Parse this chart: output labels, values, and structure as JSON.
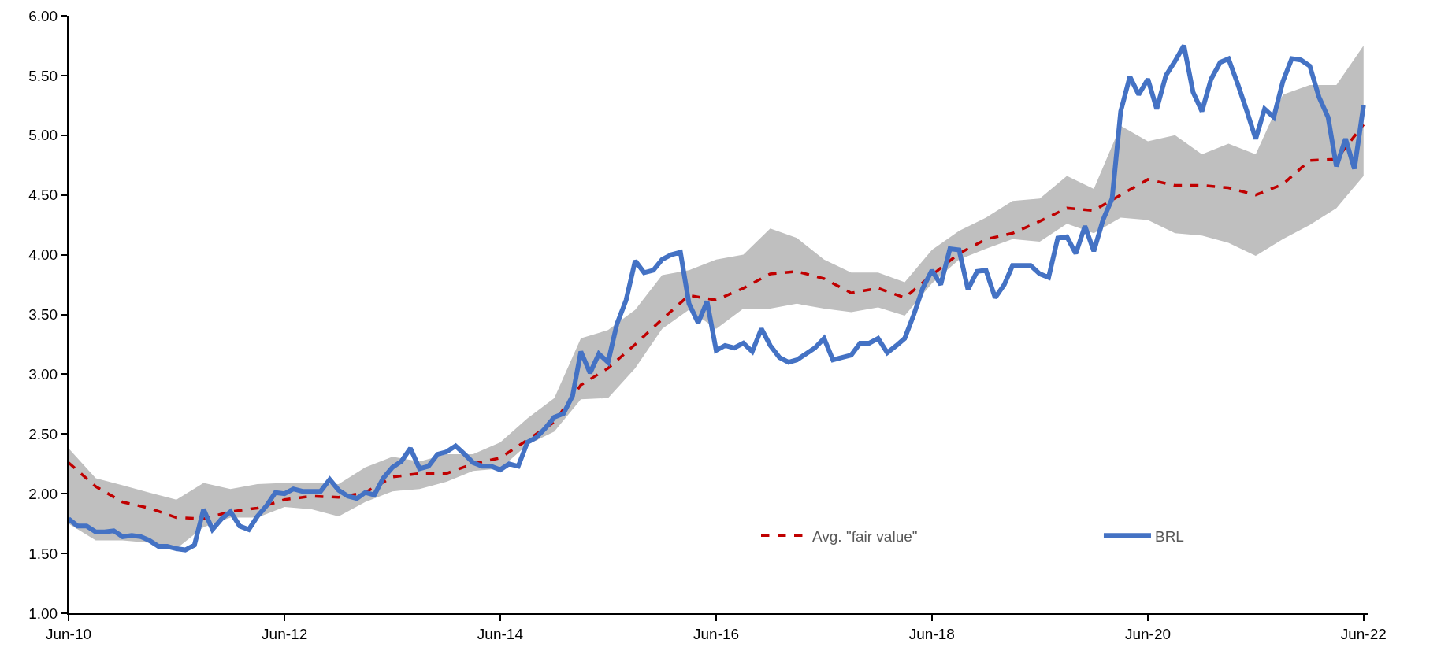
{
  "chart_data": {
    "type": "line",
    "xlim": [
      "2010-06-01",
      "2022-06-15"
    ],
    "xticks": [
      {
        "value": "2010-06-01",
        "label": "Jun-10"
      },
      {
        "value": "2012-06-01",
        "label": "Jun-12"
      },
      {
        "value": "2014-06-01",
        "label": "Jun-14"
      },
      {
        "value": "2016-06-01",
        "label": "Jun-16"
      },
      {
        "value": "2018-06-01",
        "label": "Jun-18"
      },
      {
        "value": "2020-06-01",
        "label": "Jun-20"
      },
      {
        "value": "2022-06-01",
        "label": "Jun-22"
      }
    ],
    "ylim": [
      1,
      6
    ],
    "yticks": [
      {
        "value": 1,
        "label": "1.00"
      },
      {
        "value": 1.5,
        "label": "1.50"
      },
      {
        "value": 2,
        "label": "2.00"
      },
      {
        "value": 2.5,
        "label": "2.50"
      },
      {
        "value": 3,
        "label": "3.00"
      },
      {
        "value": 3.5,
        "label": "3.50"
      },
      {
        "value": 4,
        "label": "4.00"
      },
      {
        "value": 4.5,
        "label": "4.50"
      },
      {
        "value": 5,
        "label": "5.00"
      },
      {
        "value": 5.5,
        "label": "5.50"
      },
      {
        "value": 6,
        "label": "6.00"
      }
    ],
    "grid": false,
    "legend": "bottom right",
    "marker": "none",
    "series": [
      {
        "name": "Avg. \"fair value\"",
        "color": "#c00000",
        "line_style": "dashed",
        "x": [
          "2010-06",
          "2010-09",
          "2010-12",
          "2011-03",
          "2011-06",
          "2011-09",
          "2011-12",
          "2012-03",
          "2012-06",
          "2012-09",
          "2012-12",
          "2013-03",
          "2013-06",
          "2013-09",
          "2013-12",
          "2014-03",
          "2014-06",
          "2014-09",
          "2014-12",
          "2015-03",
          "2015-06",
          "2015-09",
          "2015-12",
          "2016-03",
          "2016-06",
          "2016-09",
          "2016-12",
          "2017-03",
          "2017-06",
          "2017-09",
          "2017-12",
          "2018-03",
          "2018-06",
          "2018-09",
          "2018-12",
          "2019-03",
          "2019-06",
          "2019-09",
          "2019-12",
          "2020-03",
          "2020-06",
          "2020-09",
          "2020-12",
          "2021-03",
          "2021-06",
          "2021-09",
          "2021-12",
          "2022-03",
          "2022-06"
        ],
        "values": [
          2.26,
          2.06,
          1.93,
          1.88,
          1.8,
          1.79,
          1.85,
          1.88,
          1.95,
          1.98,
          1.97,
          2.01,
          2.14,
          2.17,
          2.17,
          2.25,
          2.3,
          2.45,
          2.6,
          2.91,
          3.05,
          3.25,
          3.46,
          3.66,
          3.62,
          3.72,
          3.84,
          3.86,
          3.8,
          3.68,
          3.72,
          3.64,
          3.83,
          4.01,
          4.13,
          4.18,
          4.28,
          4.39,
          4.37,
          4.5,
          4.63,
          4.58,
          4.58,
          4.56,
          4.5,
          4.59,
          4.79,
          4.8,
          5.09
        ],
        "upper": [
          2.38,
          2.13,
          2.07,
          2.01,
          1.95,
          2.09,
          2.04,
          2.08,
          2.09,
          2.09,
          2.08,
          2.22,
          2.31,
          2.27,
          2.33,
          2.33,
          2.43,
          2.63,
          2.8,
          3.3,
          3.37,
          3.54,
          3.83,
          3.87,
          3.96,
          4.0,
          4.22,
          4.14,
          3.96,
          3.85,
          3.85,
          3.77,
          4.04,
          4.2,
          4.31,
          4.45,
          4.47,
          4.66,
          4.55,
          5.08,
          4.95,
          5.0,
          4.84,
          4.93,
          4.84,
          5.34,
          5.42,
          5.42,
          5.75
        ],
        "lower": [
          1.75,
          1.61,
          1.61,
          1.59,
          1.54,
          1.72,
          1.8,
          1.8,
          1.89,
          1.87,
          1.81,
          1.93,
          2.02,
          2.04,
          2.1,
          2.19,
          2.21,
          2.41,
          2.52,
          2.79,
          2.8,
          3.05,
          3.38,
          3.54,
          3.38,
          3.55,
          3.55,
          3.59,
          3.55,
          3.52,
          3.56,
          3.49,
          3.76,
          3.96,
          4.05,
          4.13,
          4.11,
          4.26,
          4.18,
          4.31,
          4.29,
          4.18,
          4.16,
          4.1,
          3.99,
          4.13,
          4.25,
          4.39,
          4.66
        ]
      },
      {
        "name": "BRL",
        "color": "#4472c4",
        "line_style": "solid",
        "x": [
          "2010-06",
          "2010-07",
          "2010-08",
          "2010-09",
          "2010-10",
          "2010-11",
          "2010-12",
          "2011-01",
          "2011-02",
          "2011-03",
          "2011-04",
          "2011-05",
          "2011-06",
          "2011-07",
          "2011-08",
          "2011-09",
          "2011-10",
          "2011-11",
          "2011-12",
          "2012-01",
          "2012-02",
          "2012-03",
          "2012-04",
          "2012-05",
          "2012-06",
          "2012-07",
          "2012-08",
          "2012-09",
          "2012-10",
          "2012-11",
          "2012-12",
          "2013-01",
          "2013-02",
          "2013-03",
          "2013-04",
          "2013-05",
          "2013-06",
          "2013-07",
          "2013-08",
          "2013-09",
          "2013-10",
          "2013-11",
          "2013-12",
          "2014-01",
          "2014-02",
          "2014-03",
          "2014-04",
          "2014-05",
          "2014-06",
          "2014-07",
          "2014-08",
          "2014-09",
          "2014-10",
          "2014-11",
          "2014-12",
          "2015-01",
          "2015-02",
          "2015-03",
          "2015-04",
          "2015-05",
          "2015-06",
          "2015-07",
          "2015-08",
          "2015-09",
          "2015-10",
          "2015-11",
          "2015-12",
          "2016-01",
          "2016-02",
          "2016-03",
          "2016-04",
          "2016-05",
          "2016-06",
          "2016-07",
          "2016-08",
          "2016-09",
          "2016-10",
          "2016-11",
          "2016-12",
          "2017-01",
          "2017-02",
          "2017-03",
          "2017-04",
          "2017-05",
          "2017-06",
          "2017-07",
          "2017-08",
          "2017-09",
          "2017-10",
          "2017-11",
          "2017-12",
          "2018-01",
          "2018-02",
          "2018-03",
          "2018-04",
          "2018-05",
          "2018-06",
          "2018-07",
          "2018-08",
          "2018-09",
          "2018-10",
          "2018-11",
          "2018-12",
          "2019-01",
          "2019-02",
          "2019-03",
          "2019-04",
          "2019-05",
          "2019-06",
          "2019-07",
          "2019-08",
          "2019-09",
          "2019-10",
          "2019-11",
          "2019-12",
          "2020-01",
          "2020-02",
          "2020-03",
          "2020-04",
          "2020-05",
          "2020-06",
          "2020-07",
          "2020-08",
          "2020-09",
          "2020-10",
          "2020-11",
          "2020-12",
          "2021-01",
          "2021-02",
          "2021-03",
          "2021-04",
          "2021-05",
          "2021-06",
          "2021-07",
          "2021-08",
          "2021-09",
          "2021-10",
          "2021-11",
          "2021-12",
          "2022-01",
          "2022-02",
          "2022-03",
          "2022-04",
          "2022-05",
          "2022-06"
        ],
        "values": [
          1.79,
          1.73,
          1.73,
          1.68,
          1.68,
          1.69,
          1.64,
          1.65,
          1.64,
          1.61,
          1.56,
          1.56,
          1.54,
          1.53,
          1.57,
          1.87,
          1.7,
          1.79,
          1.85,
          1.73,
          1.7,
          1.81,
          1.9,
          2.01,
          2.0,
          2.04,
          2.02,
          2.02,
          2.02,
          2.12,
          2.03,
          1.98,
          1.96,
          2.01,
          1.99,
          2.13,
          2.22,
          2.27,
          2.38,
          2.21,
          2.23,
          2.33,
          2.35,
          2.4,
          2.33,
          2.26,
          2.23,
          2.23,
          2.2,
          2.25,
          2.23,
          2.43,
          2.47,
          2.55,
          2.64,
          2.67,
          2.82,
          3.19,
          3.01,
          3.17,
          3.1,
          3.42,
          3.62,
          3.95,
          3.85,
          3.87,
          3.96,
          4.0,
          4.02,
          3.59,
          3.43,
          3.61,
          3.2,
          3.24,
          3.22,
          3.26,
          3.19,
          3.38,
          3.24,
          3.14,
          3.1,
          3.12,
          3.17,
          3.22,
          3.3,
          3.12,
          3.14,
          3.16,
          3.26,
          3.26,
          3.3,
          3.18,
          3.24,
          3.3,
          3.5,
          3.72,
          3.87,
          3.75,
          4.05,
          4.04,
          3.71,
          3.86,
          3.87,
          3.64,
          3.75,
          3.91,
          3.91,
          3.91,
          3.84,
          3.81,
          4.14,
          4.15,
          4.01,
          4.24,
          4.03,
          4.29,
          4.47,
          5.2,
          5.49,
          5.34,
          5.47,
          5.22,
          5.5,
          5.62,
          5.75,
          5.36,
          5.2,
          5.47,
          5.61,
          5.64,
          5.43,
          5.21,
          4.97,
          5.22,
          5.15,
          5.45,
          5.64,
          5.63,
          5.58,
          5.32,
          5.15,
          4.74,
          4.97,
          4.72,
          5.25
        ]
      }
    ]
  }
}
